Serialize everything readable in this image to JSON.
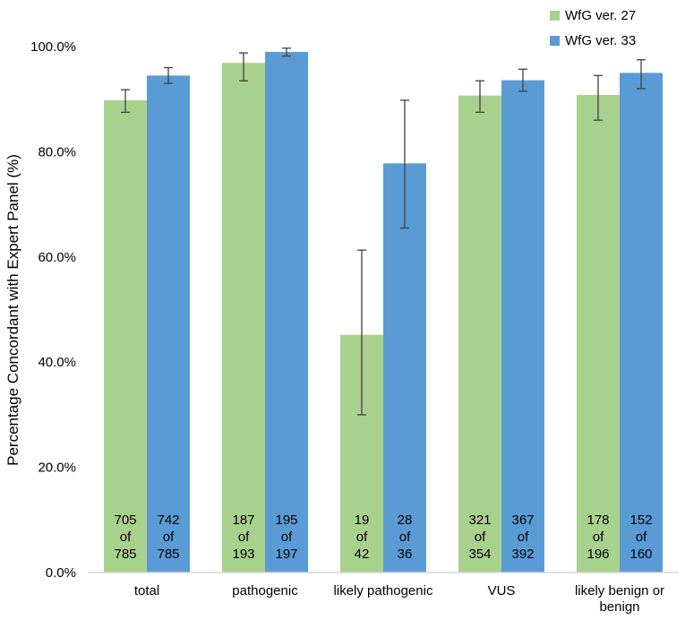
{
  "chart_data": {
    "type": "bar",
    "title": "",
    "xlabel": "",
    "ylabel": "Percentage Concordant with Expert Panel (%)",
    "ylim": [
      0,
      100
    ],
    "yticks": [
      0,
      20,
      40,
      60,
      80,
      100
    ],
    "ytick_labels": [
      "0.0%",
      "20.0%",
      "40.0%",
      "60.0%",
      "80.0%",
      "100.0%"
    ],
    "categories": [
      [
        "total"
      ],
      [
        "pathogenic"
      ],
      [
        "likely pathogenic"
      ],
      [
        "VUS"
      ],
      [
        "likely benign or",
        "benign"
      ]
    ],
    "grid": false,
    "legend_position": "top-right",
    "series": [
      {
        "name": "WfG ver. 27",
        "color": "#a9d18e",
        "values": [
          89.8,
          96.9,
          45.2,
          90.7,
          90.8
        ],
        "error_low": [
          87.5,
          93.5,
          30.0,
          87.5,
          86.0
        ],
        "error_high": [
          91.8,
          98.8,
          61.3,
          93.5,
          94.5
        ],
        "counts": [
          [
            "705",
            "of",
            "785"
          ],
          [
            "187",
            "of",
            "193"
          ],
          [
            "19",
            "of",
            "42"
          ],
          [
            "321",
            "of",
            "354"
          ],
          [
            "178",
            "of",
            "196"
          ]
        ]
      },
      {
        "name": "WfG ver. 33",
        "color": "#5b9bd5",
        "values": [
          94.5,
          99.0,
          77.8,
          93.6,
          95.0
        ],
        "error_low": [
          93.0,
          98.2,
          65.5,
          91.5,
          92.0
        ],
        "error_high": [
          96.0,
          99.7,
          89.8,
          95.7,
          97.5
        ],
        "counts": [
          [
            "742",
            "of",
            "785"
          ],
          [
            "195",
            "of",
            "197"
          ],
          [
            "28",
            "of",
            "36"
          ],
          [
            "367",
            "of",
            "392"
          ],
          [
            "152",
            "of",
            "160"
          ]
        ]
      }
    ]
  }
}
